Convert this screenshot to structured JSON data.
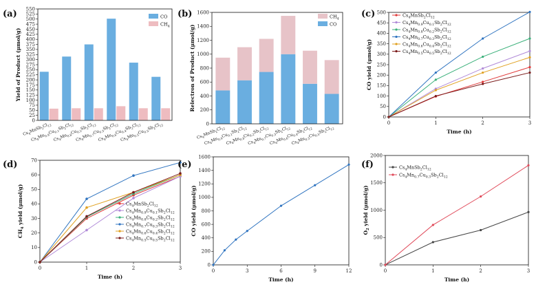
{
  "chart_data": [
    {
      "panel": "(a)",
      "type": "bar",
      "ylabel": "Yield of Product (μmol/g)",
      "ylim": [
        0,
        550
      ],
      "yticks": [
        0,
        25,
        50,
        75,
        100,
        125,
        150,
        175,
        200,
        225,
        250,
        275,
        300,
        325,
        350,
        375,
        400,
        425,
        450,
        475,
        500,
        525,
        550
      ],
      "categories": [
        "Cs4MnSb2Cl12",
        "Cs4Mn0.9Cu0.1Sb2Cl12",
        "Cs4Mn0.8Cu0.2Sb2Cl12",
        "Cs4Mn0.7Cu0.3Sb2Cl12",
        "Cs4Mn0.6Cu0.4Sb2Cl12",
        "Cs4Mn0.5Cu0.5Sb2Cl12"
      ],
      "series": [
        {
          "name": "CO",
          "color": "#6aaee0",
          "values": [
            240,
            315,
            375,
            502,
            285,
            215
          ]
        },
        {
          "name": "CH4",
          "color": "#eebcc0",
          "values": [
            58,
            60,
            60,
            70,
            60,
            60
          ]
        }
      ],
      "legend_position": "top-right"
    },
    {
      "panel": "(b)",
      "type": "bar-stacked",
      "ylabel": "Relectron of Product (μmol/g)",
      "ylim": [
        0,
        1600
      ],
      "yticks": [
        0,
        200,
        400,
        600,
        800,
        1000,
        1200,
        1400,
        1600
      ],
      "categories": [
        "Cs4MnSb2Cl12",
        "Cs4Mn0.9Cu0.1Sb2Cl12",
        "Cs4Mn0.8Cu0.2Sb2Cl12",
        "Cs4Mn0.7Cu0.3Sb2Cl12",
        "Cs4Mn0.6Cu0.4Sb2Cl12",
        "Cs4Mn0.5Cu0.5Sb2Cl12"
      ],
      "series": [
        {
          "name": "CO",
          "color": "#6aaee0",
          "values": [
            480,
            625,
            745,
            1000,
            575,
            430
          ]
        },
        {
          "name": "CH4",
          "color": "#e7c3c8",
          "values": [
            470,
            475,
            475,
            550,
            475,
            485
          ]
        }
      ],
      "legend_position": "top-right"
    },
    {
      "panel": "(c)",
      "type": "line",
      "xlabel": "Time (h)",
      "ylabel": "CO yield (μmol/g)",
      "x": [
        0,
        1,
        2,
        3
      ],
      "xlim": [
        0,
        3
      ],
      "ylim": [
        0,
        500
      ],
      "yticks": [
        0,
        50,
        100,
        150,
        200,
        250,
        300,
        350,
        400,
        450,
        500
      ],
      "series": [
        {
          "name": "Cs4MnSb2Cl12",
          "color": "#e03a3a",
          "values": [
            0,
            98,
            168,
            238
          ]
        },
        {
          "name": "Cs4Mn0.9Cu0.1Sb2Cl12",
          "color": "#b08ad8",
          "values": [
            0,
            135,
            232,
            315
          ]
        },
        {
          "name": "Cs4Mn0.8Cu0.2Sb2Cl12",
          "color": "#3ab07a",
          "values": [
            0,
            178,
            288,
            375
          ]
        },
        {
          "name": "Cs4Mn0.7Cu0.3Sb2Cl12",
          "color": "#2f74c0",
          "values": [
            0,
            212,
            375,
            502
          ]
        },
        {
          "name": "Cs4Mn0.6Cu0.4Sb2Cl12",
          "color": "#e0a020",
          "values": [
            0,
            128,
            212,
            285
          ]
        },
        {
          "name": "Cs4Mn0.5Cu0.5Sb2Cl12",
          "color": "#7a1a1a",
          "values": [
            0,
            100,
            158,
            212
          ]
        }
      ],
      "legend_position": "top-left"
    },
    {
      "panel": "(d)",
      "type": "line",
      "xlabel": "Time (h)",
      "ylabel": "CH4 yield (μmol/g)",
      "x": [
        0,
        1,
        2,
        3
      ],
      "xlim": [
        0,
        3
      ],
      "ylim": [
        0,
        70
      ],
      "yticks": [
        0,
        10,
        20,
        30,
        40,
        50,
        60,
        70
      ],
      "series": [
        {
          "name": "Cs4MnSb2Cl12",
          "color": "#e03a3a",
          "values": [
            0,
            30,
            46,
            59
          ]
        },
        {
          "name": "Cs4Mn0.9Cu0.1Sb2Cl12",
          "color": "#b08ad8",
          "values": [
            0,
            22,
            44,
            59
          ]
        },
        {
          "name": "Cs4Mn0.8Cu0.2Sb2Cl12",
          "color": "#3ab07a",
          "values": [
            0,
            31,
            47,
            60
          ]
        },
        {
          "name": "Cs4Mn0.7Cu0.3Sb2Cl12",
          "color": "#2f74c0",
          "values": [
            0,
            43.5,
            59.5,
            68.5
          ]
        },
        {
          "name": "Cs4Mn0.6Cu0.4Sb2Cl12",
          "color": "#e0a020",
          "values": [
            0,
            37.5,
            48,
            60
          ]
        },
        {
          "name": "Cs4Mn0.5Cu0.5Sb2Cl12",
          "color": "#7a1a1a",
          "values": [
            0,
            31.5,
            48,
            61
          ]
        }
      ],
      "legend_position": "bottom-right"
    },
    {
      "panel": "(e)",
      "type": "line",
      "xlabel": "Time (h)",
      "ylabel": "CO yield (μmol/g)",
      "x": [
        0,
        1,
        2,
        3,
        6,
        9,
        12
      ],
      "xticks": [
        0,
        3,
        6,
        9,
        12
      ],
      "xlim": [
        0,
        12
      ],
      "ylim": [
        0,
        1600
      ],
      "yticks": [
        0,
        200,
        400,
        600,
        800,
        1000,
        1200,
        1400,
        1600
      ],
      "series": [
        {
          "name": "CO",
          "color": "#2f74c0",
          "values": [
            0,
            215,
            375,
            502,
            875,
            1180,
            1485
          ]
        }
      ]
    },
    {
      "panel": "(f)",
      "type": "line",
      "xlabel": "Time (h)",
      "ylabel": "O2 yield (μmol/g)",
      "x": [
        0,
        1,
        2,
        3
      ],
      "xlim": [
        0,
        3
      ],
      "ylim": [
        0,
        2000
      ],
      "yticks": [
        0,
        500,
        1000,
        1500,
        2000
      ],
      "series": [
        {
          "name": "Cs4MnSb2Cl12",
          "color": "#444444",
          "values": [
            0,
            415,
            635,
            965
          ]
        },
        {
          "name": "Cs4Mn0.7Cu0.3Sb2Cl12",
          "color": "#e04a5a",
          "values": [
            0,
            730,
            1250,
            1820
          ]
        }
      ],
      "legend_position": "top-left"
    }
  ]
}
